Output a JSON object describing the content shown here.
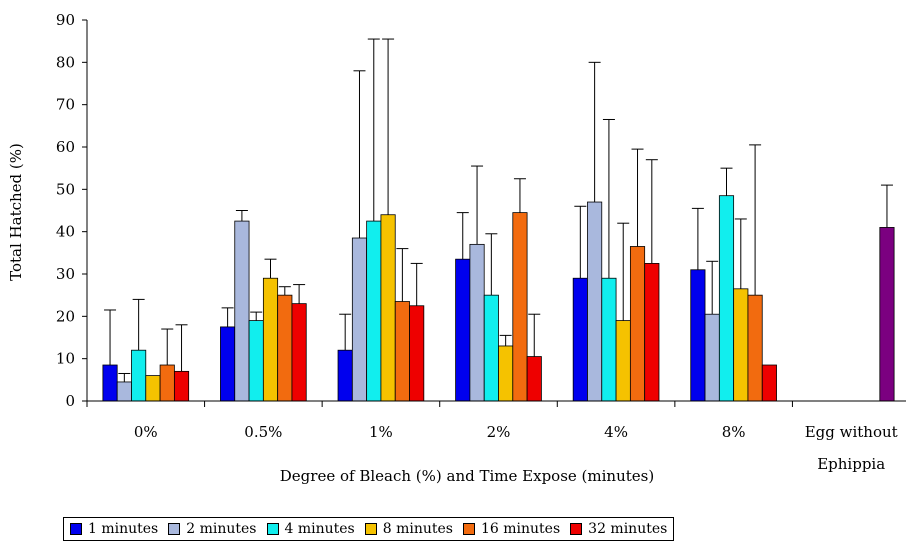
{
  "chart_data": {
    "type": "bar",
    "ylabel": "Total Hatched (%)",
    "xlabel": "Degree of Bleach (%) and Time Expose (minutes)",
    "ylim": [
      0,
      90
    ],
    "yticks": [
      0,
      10,
      20,
      30,
      40,
      50,
      60,
      70,
      80,
      90
    ],
    "grid": false,
    "legend_position": "bottom",
    "categories": [
      "0%",
      "0.5%",
      "1%",
      "2%",
      "4%",
      "8%",
      "Egg without Ephippia"
    ],
    "series": [
      {
        "name": "1 minutes",
        "color": "#0000ee",
        "values": [
          8.5,
          17.5,
          12,
          33.5,
          29,
          31,
          null
        ],
        "error": [
          13,
          4.5,
          8.5,
          11,
          17,
          14.5,
          null
        ]
      },
      {
        "name": "2 minutes",
        "color": "#a9b8dd",
        "values": [
          4.5,
          42.5,
          38.5,
          37,
          47,
          20.5,
          null
        ],
        "error": [
          2,
          2.5,
          39.5,
          18.5,
          33,
          12.5,
          null
        ]
      },
      {
        "name": "4 minutes",
        "color": "#11eeee",
        "values": [
          12,
          19,
          42.5,
          25,
          29,
          48.5,
          null
        ],
        "error": [
          12,
          2,
          43,
          14.5,
          37.5,
          6.5,
          null
        ]
      },
      {
        "name": "8 minutes",
        "color": "#f5c200",
        "values": [
          6,
          29,
          44,
          13,
          19,
          26.5,
          null
        ],
        "error": [
          0,
          4.5,
          41.5,
          2.5,
          23,
          16.5,
          null
        ]
      },
      {
        "name": "16 minutes",
        "color": "#f26b0f",
        "values": [
          8.5,
          25,
          23.5,
          44.5,
          36.5,
          25,
          null
        ],
        "error": [
          8.5,
          2,
          12.5,
          8,
          23,
          35.5,
          null
        ]
      },
      {
        "name": "32 minutes",
        "color": "#ee0000",
        "values": [
          7,
          23,
          22.5,
          10.5,
          32.5,
          8.5,
          null
        ],
        "error": [
          11,
          4.5,
          10,
          10,
          24.5,
          0,
          null
        ]
      }
    ],
    "extra_bar": {
      "category": "Egg without Ephippia",
      "color": "#7b0080",
      "value": 41,
      "error": 10
    }
  },
  "legend": {
    "items": [
      {
        "label": "1 minutes",
        "color": "#0000ee"
      },
      {
        "label": "2 minutes",
        "color": "#a9b8dd"
      },
      {
        "label": "4 minutes",
        "color": "#11eeee"
      },
      {
        "label": "8 minutes",
        "color": "#f5c200"
      },
      {
        "label": "16 minutes",
        "color": "#f26b0f"
      },
      {
        "label": "32 minutes",
        "color": "#ee0000"
      }
    ]
  }
}
